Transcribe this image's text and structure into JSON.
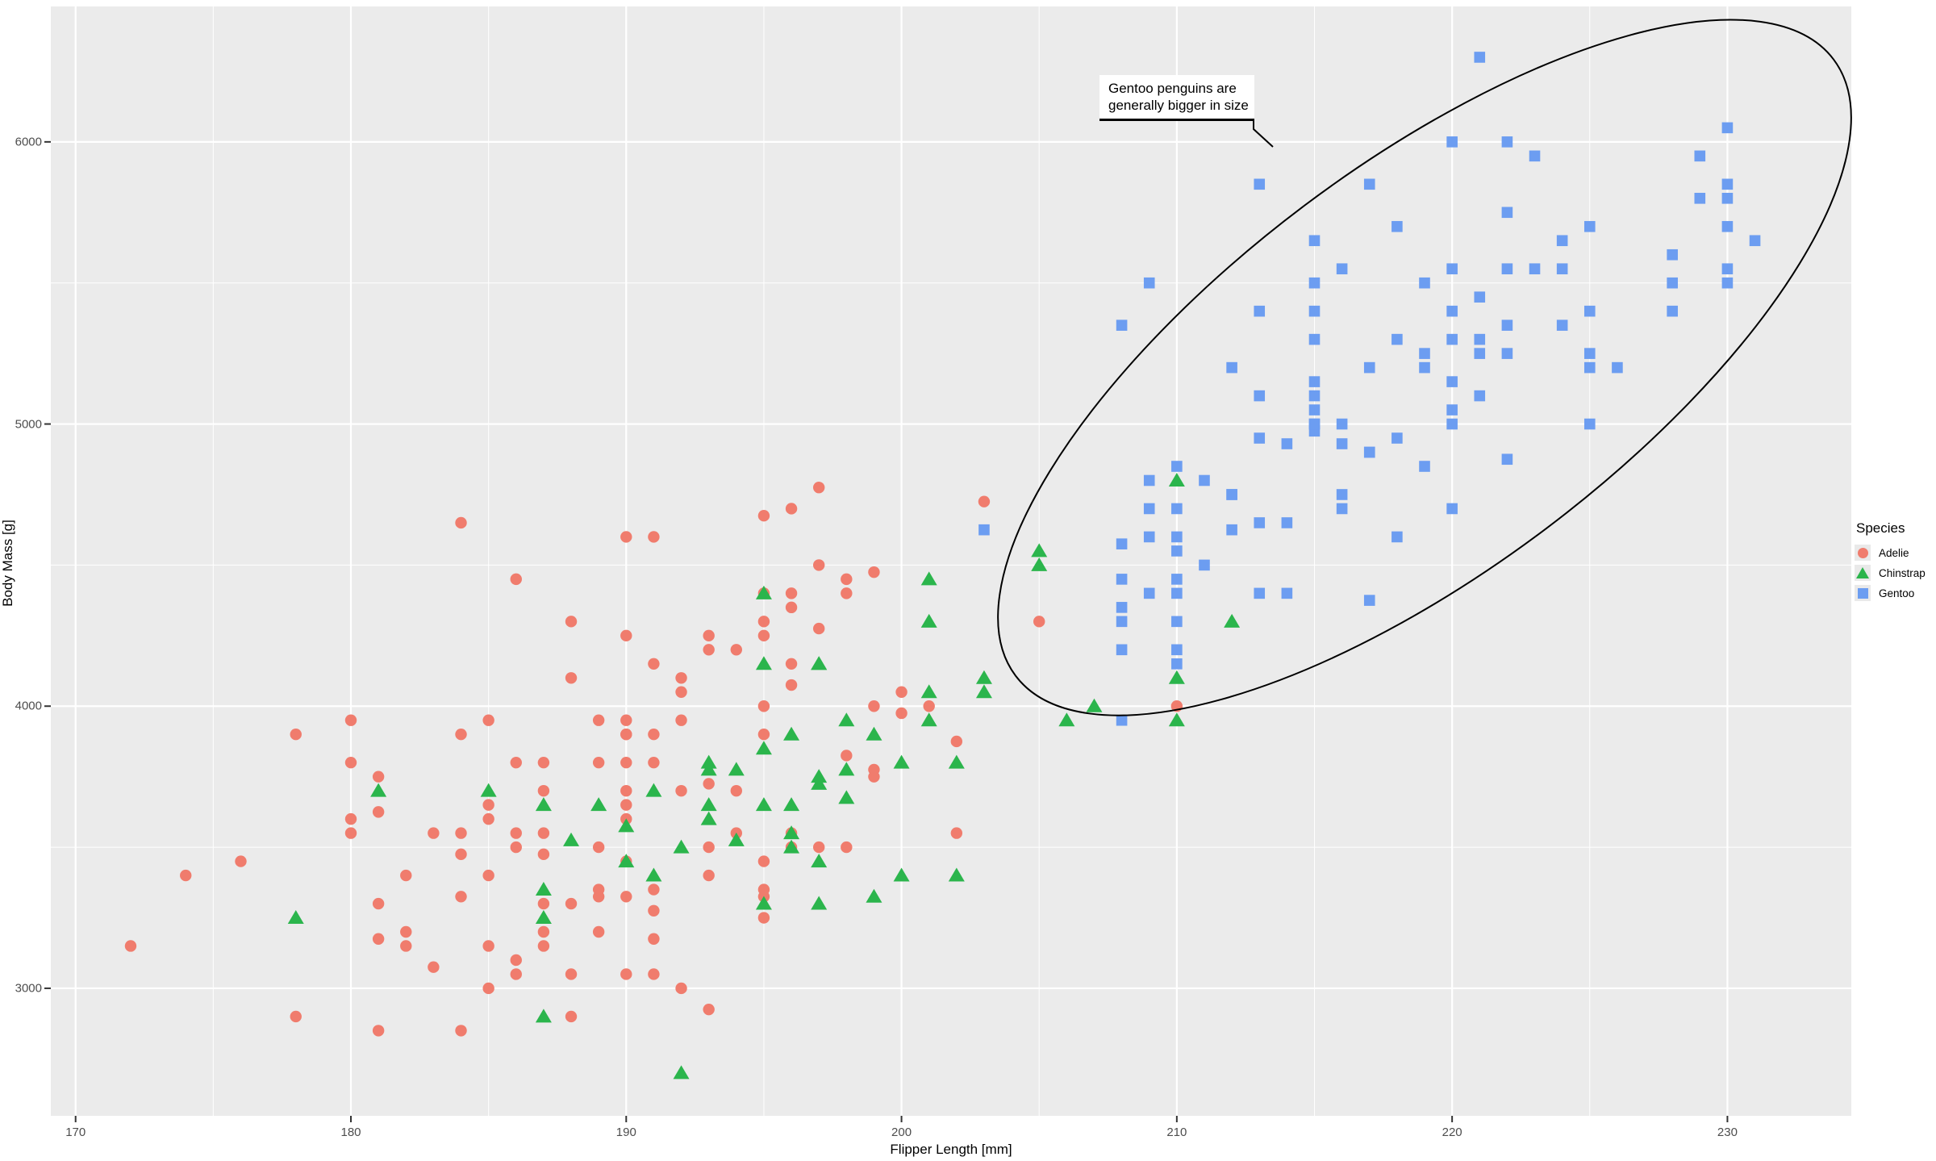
{
  "annotation": {
    "line1": "Gentoo penguins are",
    "line2": "generally bigger in size",
    "ellipse": {
      "center_x_mm": 219,
      "center_y_g": 5200,
      "rx_mm": 18.6,
      "ry_g": 715,
      "angle_deg": -37
    }
  },
  "legend": {
    "title": "Species",
    "items": [
      {
        "label": "Adelie",
        "shape": "circle",
        "color": "#f07c6d"
      },
      {
        "label": "Chinstrap",
        "shape": "triangle",
        "color": "#2bb54c"
      },
      {
        "label": "Gentoo",
        "shape": "square",
        "color": "#6c9df1"
      }
    ]
  },
  "colors": {
    "panel_background": "#ebebeb",
    "gridline": "#ffffff",
    "tick_text": "#4d4d4d",
    "adelie": "#f07c6d",
    "chinstrap": "#2bb54c",
    "gentoo": "#6c9df1",
    "ellipse_stroke": "#000000"
  },
  "chart_data": {
    "type": "scatter",
    "title": "",
    "xlabel": "Flipper Length [mm]",
    "ylabel": "Body Mass [g]",
    "x_ticks": [
      170,
      180,
      190,
      200,
      210,
      220,
      230
    ],
    "y_ticks": [
      3000,
      4000,
      5000,
      6000
    ],
    "x_minor_ticks": [
      175,
      185,
      195,
      205,
      215,
      225
    ],
    "y_minor_ticks": [
      3500,
      4500,
      5500
    ],
    "xlim": [
      169.1,
      234.5
    ],
    "ylim": [
      2548,
      6480
    ],
    "grid": "on",
    "legend_position": "right",
    "series": [
      {
        "name": "Adelie",
        "marker": "circle",
        "color": "#f07c6d",
        "points": [
          [
            172,
            3150
          ],
          [
            174,
            3400
          ],
          [
            176,
            3450
          ],
          [
            178,
            2900
          ],
          [
            178,
            3900
          ],
          [
            180,
            3550
          ],
          [
            180,
            3600
          ],
          [
            180,
            3800
          ],
          [
            180,
            3950
          ],
          [
            181,
            2850
          ],
          [
            181,
            3175
          ],
          [
            181,
            3300
          ],
          [
            181,
            3625
          ],
          [
            181,
            3750
          ],
          [
            182,
            3150
          ],
          [
            182,
            3200
          ],
          [
            182,
            3400
          ],
          [
            183,
            3075
          ],
          [
            183,
            3550
          ],
          [
            184,
            2850
          ],
          [
            184,
            3325
          ],
          [
            184,
            3475
          ],
          [
            184,
            3550
          ],
          [
            184,
            3900
          ],
          [
            184,
            4650
          ],
          [
            185,
            3000
          ],
          [
            185,
            3150
          ],
          [
            185,
            3400
          ],
          [
            185,
            3600
          ],
          [
            185,
            3650
          ],
          [
            185,
            3950
          ],
          [
            186,
            3050
          ],
          [
            186,
            3100
          ],
          [
            186,
            3500
          ],
          [
            186,
            3550
          ],
          [
            186,
            3800
          ],
          [
            186,
            4450
          ],
          [
            187,
            3150
          ],
          [
            187,
            3200
          ],
          [
            187,
            3300
          ],
          [
            187,
            3475
          ],
          [
            187,
            3550
          ],
          [
            187,
            3700
          ],
          [
            187,
            3800
          ],
          [
            188,
            2900
          ],
          [
            188,
            3050
          ],
          [
            188,
            3300
          ],
          [
            188,
            4100
          ],
          [
            188,
            4300
          ],
          [
            189,
            3200
          ],
          [
            189,
            3325
          ],
          [
            189,
            3350
          ],
          [
            189,
            3500
          ],
          [
            189,
            3800
          ],
          [
            189,
            3950
          ],
          [
            190,
            3050
          ],
          [
            190,
            3325
          ],
          [
            190,
            3450
          ],
          [
            190,
            3600
          ],
          [
            190,
            3650
          ],
          [
            190,
            3700
          ],
          [
            190,
            3800
          ],
          [
            190,
            3900
          ],
          [
            190,
            3900
          ],
          [
            190,
            3950
          ],
          [
            190,
            4250
          ],
          [
            190,
            4600
          ],
          [
            191,
            3050
          ],
          [
            191,
            3175
          ],
          [
            191,
            3275
          ],
          [
            191,
            3350
          ],
          [
            191,
            3800
          ],
          [
            191,
            3900
          ],
          [
            191,
            4150
          ],
          [
            191,
            4600
          ],
          [
            192,
            3000
          ],
          [
            192,
            3700
          ],
          [
            192,
            3950
          ],
          [
            192,
            4050
          ],
          [
            192,
            4100
          ],
          [
            193,
            2925
          ],
          [
            193,
            3400
          ],
          [
            193,
            3500
          ],
          [
            193,
            3725
          ],
          [
            193,
            4200
          ],
          [
            193,
            4250
          ],
          [
            194,
            3550
          ],
          [
            194,
            3700
          ],
          [
            194,
            4200
          ],
          [
            195,
            3250
          ],
          [
            195,
            3325
          ],
          [
            195,
            3350
          ],
          [
            195,
            3450
          ],
          [
            195,
            3900
          ],
          [
            195,
            4000
          ],
          [
            195,
            4250
          ],
          [
            195,
            4300
          ],
          [
            195,
            4400
          ],
          [
            195,
            4675
          ],
          [
            196,
            3500
          ],
          [
            196,
            3550
          ],
          [
            196,
            4075
          ],
          [
            196,
            4150
          ],
          [
            196,
            4350
          ],
          [
            196,
            4400
          ],
          [
            196,
            4700
          ],
          [
            197,
            3500
          ],
          [
            197,
            4275
          ],
          [
            197,
            4500
          ],
          [
            197,
            4775
          ],
          [
            198,
            3500
          ],
          [
            198,
            3825
          ],
          [
            198,
            4400
          ],
          [
            198,
            4450
          ],
          [
            199,
            3750
          ],
          [
            199,
            3775
          ],
          [
            199,
            4000
          ],
          [
            199,
            4475
          ],
          [
            200,
            3975
          ],
          [
            200,
            4050
          ],
          [
            201,
            4000
          ],
          [
            202,
            3550
          ],
          [
            202,
            3875
          ],
          [
            203,
            4725
          ],
          [
            205,
            4300
          ],
          [
            210,
            4000
          ]
        ]
      },
      {
        "name": "Chinstrap",
        "marker": "triangle",
        "color": "#2bb54c",
        "points": [
          [
            178,
            3250
          ],
          [
            181,
            3700
          ],
          [
            185,
            3700
          ],
          [
            187,
            2900
          ],
          [
            187,
            3250
          ],
          [
            187,
            3350
          ],
          [
            187,
            3650
          ],
          [
            188,
            3525
          ],
          [
            189,
            3650
          ],
          [
            190,
            3450
          ],
          [
            190,
            3575
          ],
          [
            191,
            3400
          ],
          [
            191,
            3700
          ],
          [
            192,
            2700
          ],
          [
            192,
            3500
          ],
          [
            193,
            3600
          ],
          [
            193,
            3650
          ],
          [
            193,
            3775
          ],
          [
            193,
            3800
          ],
          [
            194,
            3525
          ],
          [
            194,
            3775
          ],
          [
            195,
            3300
          ],
          [
            195,
            3650
          ],
          [
            195,
            3850
          ],
          [
            195,
            4150
          ],
          [
            195,
            4400
          ],
          [
            196,
            3500
          ],
          [
            196,
            3550
          ],
          [
            196,
            3650
          ],
          [
            196,
            3900
          ],
          [
            197,
            3300
          ],
          [
            197,
            3450
          ],
          [
            197,
            3725
          ],
          [
            197,
            3750
          ],
          [
            197,
            4150
          ],
          [
            197,
            4150
          ],
          [
            198,
            3675
          ],
          [
            198,
            3775
          ],
          [
            198,
            3950
          ],
          [
            199,
            3325
          ],
          [
            199,
            3900
          ],
          [
            200,
            3400
          ],
          [
            200,
            3800
          ],
          [
            201,
            3950
          ],
          [
            201,
            4050
          ],
          [
            201,
            4300
          ],
          [
            201,
            4450
          ],
          [
            202,
            3400
          ],
          [
            202,
            3800
          ],
          [
            203,
            4050
          ],
          [
            203,
            4100
          ],
          [
            205,
            4500
          ],
          [
            205,
            4550
          ],
          [
            206,
            3950
          ],
          [
            207,
            4000
          ],
          [
            210,
            3950
          ],
          [
            210,
            4100
          ],
          [
            210,
            4800
          ],
          [
            212,
            4300
          ]
        ]
      },
      {
        "name": "Gentoo",
        "marker": "square",
        "color": "#6c9df1",
        "points": [
          [
            203,
            4625
          ],
          [
            208,
            3950
          ],
          [
            208,
            4200
          ],
          [
            208,
            4300
          ],
          [
            208,
            4350
          ],
          [
            208,
            4450
          ],
          [
            208,
            4575
          ],
          [
            208,
            5350
          ],
          [
            209,
            4400
          ],
          [
            209,
            4600
          ],
          [
            209,
            4700
          ],
          [
            209,
            4800
          ],
          [
            209,
            5500
          ],
          [
            210,
            4150
          ],
          [
            210,
            4200
          ],
          [
            210,
            4300
          ],
          [
            210,
            4400
          ],
          [
            210,
            4450
          ],
          [
            210,
            4550
          ],
          [
            210,
            4600
          ],
          [
            210,
            4700
          ],
          [
            210,
            4850
          ],
          [
            211,
            4500
          ],
          [
            211,
            4800
          ],
          [
            212,
            4625
          ],
          [
            212,
            4750
          ],
          [
            212,
            4750
          ],
          [
            212,
            5200
          ],
          [
            213,
            4400
          ],
          [
            213,
            4650
          ],
          [
            213,
            4950
          ],
          [
            213,
            5100
          ],
          [
            213,
            5400
          ],
          [
            213,
            5850
          ],
          [
            214,
            4400
          ],
          [
            214,
            4650
          ],
          [
            214,
            4930
          ],
          [
            215,
            4975
          ],
          [
            215,
            5000
          ],
          [
            215,
            5000
          ],
          [
            215,
            5050
          ],
          [
            215,
            5100
          ],
          [
            215,
            5150
          ],
          [
            215,
            5300
          ],
          [
            215,
            5400
          ],
          [
            215,
            5500
          ],
          [
            215,
            5650
          ],
          [
            216,
            4700
          ],
          [
            216,
            4750
          ],
          [
            216,
            4930
          ],
          [
            216,
            5000
          ],
          [
            216,
            5550
          ],
          [
            217,
            4375
          ],
          [
            217,
            4900
          ],
          [
            217,
            4900
          ],
          [
            217,
            5200
          ],
          [
            217,
            5850
          ],
          [
            218,
            4600
          ],
          [
            218,
            4950
          ],
          [
            218,
            5300
          ],
          [
            218,
            5700
          ],
          [
            219,
            4850
          ],
          [
            219,
            5200
          ],
          [
            219,
            5250
          ],
          [
            219,
            5500
          ],
          [
            220,
            4700
          ],
          [
            220,
            5000
          ],
          [
            220,
            5050
          ],
          [
            220,
            5150
          ],
          [
            220,
            5300
          ],
          [
            220,
            5400
          ],
          [
            220,
            5550
          ],
          [
            220,
            6000
          ],
          [
            221,
            5100
          ],
          [
            221,
            5250
          ],
          [
            221,
            5300
          ],
          [
            221,
            5450
          ],
          [
            221,
            6300
          ],
          [
            222,
            4875
          ],
          [
            222,
            5250
          ],
          [
            222,
            5350
          ],
          [
            222,
            5550
          ],
          [
            222,
            5750
          ],
          [
            222,
            6000
          ],
          [
            223,
            5550
          ],
          [
            223,
            5950
          ],
          [
            224,
            5350
          ],
          [
            224,
            5550
          ],
          [
            224,
            5650
          ],
          [
            225,
            5000
          ],
          [
            225,
            5200
          ],
          [
            225,
            5250
          ],
          [
            225,
            5400
          ],
          [
            225,
            5700
          ],
          [
            226,
            5200
          ],
          [
            228,
            5400
          ],
          [
            228,
            5500
          ],
          [
            228,
            5600
          ],
          [
            229,
            5800
          ],
          [
            229,
            5950
          ],
          [
            230,
            5500
          ],
          [
            230,
            5550
          ],
          [
            230,
            5700
          ],
          [
            230,
            5800
          ],
          [
            230,
            5850
          ],
          [
            230,
            6050
          ],
          [
            231,
            5650
          ]
        ]
      }
    ]
  }
}
